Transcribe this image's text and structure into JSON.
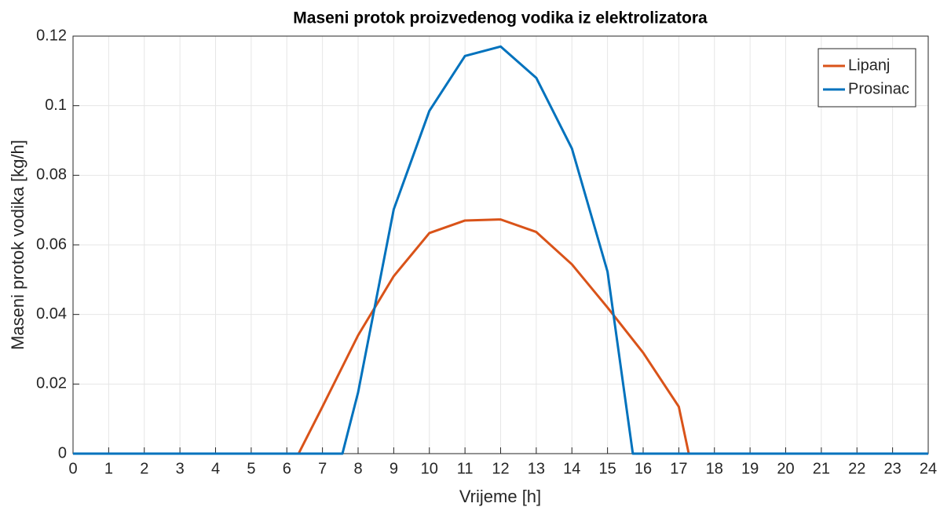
{
  "chart_data": {
    "type": "line",
    "title": "Maseni protok proizvedenog vodika iz elektrolizatora",
    "xlabel": "Vrijeme [h]",
    "ylabel": "Maseni protok vodika [kg/h]",
    "series": [
      {
        "name": "Lipanj",
        "color": "#d95319",
        "x": [
          0,
          1,
          2,
          3,
          4,
          5,
          6,
          6.33,
          7,
          8,
          9,
          10,
          11,
          12,
          13,
          14,
          15,
          16,
          17,
          17.28,
          18,
          19,
          20,
          21,
          22,
          23,
          24
        ],
        "values": [
          0,
          0,
          0,
          0,
          0,
          0,
          0,
          0,
          0.0135,
          0.034,
          0.051,
          0.0634,
          0.067,
          0.0673,
          0.0637,
          0.0544,
          0.042,
          0.029,
          0.0135,
          0,
          0,
          0,
          0,
          0,
          0,
          0,
          0
        ]
      },
      {
        "name": "Prosinac",
        "color": "#0072bd",
        "x": [
          0,
          1,
          2,
          3,
          4,
          5,
          6,
          7,
          7.56,
          8,
          9,
          10,
          11,
          12,
          13,
          14,
          15,
          15.71,
          16,
          17,
          18,
          19,
          20,
          21,
          22,
          23,
          24
        ],
        "values": [
          0,
          0,
          0,
          0,
          0,
          0,
          0,
          0,
          0,
          0.0176,
          0.0702,
          0.0985,
          0.1143,
          0.117,
          0.108,
          0.0877,
          0.0523,
          0,
          0,
          0,
          0,
          0,
          0,
          0,
          0,
          0,
          0
        ]
      }
    ],
    "xlim": [
      0,
      24
    ],
    "xticks": [
      0,
      1,
      2,
      3,
      4,
      5,
      6,
      7,
      8,
      9,
      10,
      11,
      12,
      13,
      14,
      15,
      16,
      17,
      18,
      19,
      20,
      21,
      22,
      23,
      24
    ],
    "ylim": [
      0,
      0.12
    ],
    "yticks": [
      0,
      0.02,
      0.04,
      0.06,
      0.08,
      0.1,
      0.12
    ],
    "grid": true,
    "legend": "top-right"
  }
}
